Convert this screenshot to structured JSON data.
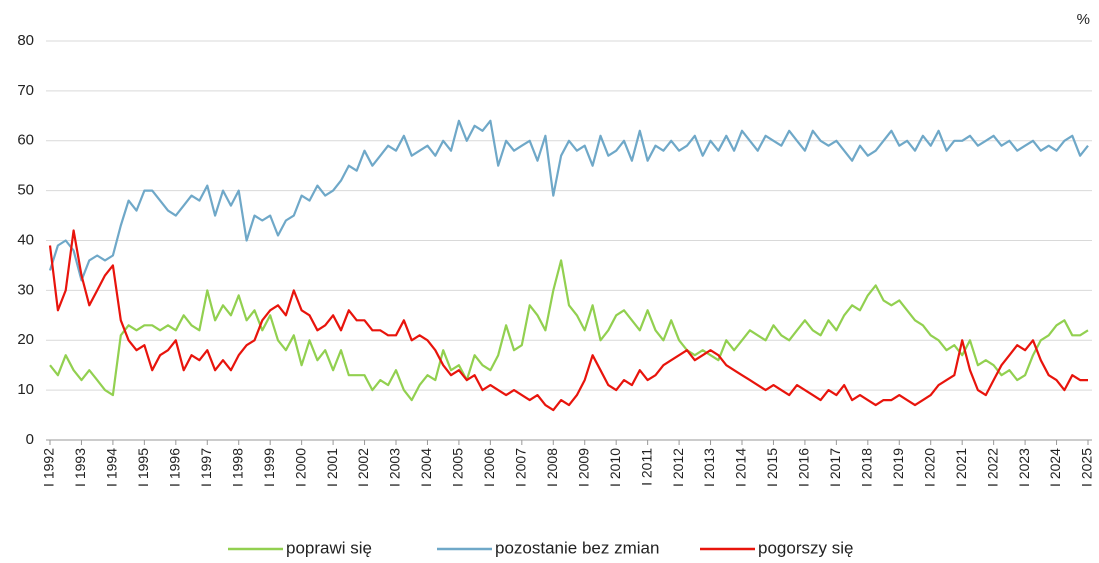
{
  "chart_data": {
    "type": "line",
    "unit": "%",
    "x": [
      1992,
      1992.25,
      1992.5,
      1992.75,
      1993,
      1993.25,
      1993.5,
      1993.75,
      1994,
      1994.25,
      1994.5,
      1994.75,
      1995,
      1995.25,
      1995.5,
      1995.75,
      1996,
      1996.25,
      1996.5,
      1996.75,
      1997,
      1997.25,
      1997.5,
      1997.75,
      1998,
      1998.25,
      1998.5,
      1998.75,
      1999,
      1999.25,
      1999.5,
      1999.75,
      2000,
      2000.25,
      2000.5,
      2000.75,
      2001,
      2001.25,
      2001.5,
      2001.75,
      2002,
      2002.25,
      2002.5,
      2002.75,
      2003,
      2003.25,
      2003.5,
      2003.75,
      2004,
      2004.25,
      2004.5,
      2004.75,
      2005,
      2005.25,
      2005.5,
      2005.75,
      2006,
      2006.25,
      2006.5,
      2006.75,
      2007,
      2007.25,
      2007.5,
      2007.75,
      2008,
      2008.25,
      2008.5,
      2008.75,
      2009,
      2009.25,
      2009.5,
      2009.75,
      2010,
      2010.25,
      2010.5,
      2010.75,
      2011,
      2011.25,
      2011.5,
      2011.75,
      2012,
      2012.25,
      2012.5,
      2012.75,
      2013,
      2013.25,
      2013.5,
      2013.75,
      2014,
      2014.25,
      2014.5,
      2014.75,
      2015,
      2015.25,
      2015.5,
      2015.75,
      2016,
      2016.25,
      2016.5,
      2016.75,
      2017,
      2017.25,
      2017.5,
      2017.75,
      2018,
      2018.25,
      2018.5,
      2018.75,
      2019,
      2019.25,
      2019.5,
      2019.75,
      2020,
      2020.25,
      2020.5,
      2020.75,
      2021,
      2021.25,
      2021.5,
      2021.75,
      2022,
      2022.25,
      2022.5,
      2022.75,
      2023,
      2023.25,
      2023.5,
      2023.75,
      2024,
      2024.25,
      2024.5,
      2024.75,
      2025
    ],
    "series": [
      {
        "name": "poprawi się",
        "color": "#92d050",
        "values": [
          15,
          13,
          17,
          14,
          12,
          14,
          12,
          10,
          9,
          21,
          23,
          22,
          23,
          23,
          22,
          23,
          22,
          25,
          23,
          22,
          30,
          24,
          27,
          25,
          29,
          24,
          26,
          22,
          25,
          20,
          18,
          21,
          15,
          20,
          16,
          18,
          14,
          18,
          13,
          13,
          13,
          10,
          12,
          11,
          14,
          10,
          8,
          11,
          13,
          12,
          18,
          14,
          15,
          12,
          17,
          15,
          14,
          17,
          23,
          18,
          19,
          27,
          25,
          22,
          30,
          36,
          27,
          25,
          22,
          27,
          20,
          22,
          25,
          26,
          24,
          22,
          26,
          22,
          20,
          24,
          20,
          18,
          17,
          18,
          17,
          16,
          20,
          18,
          20,
          22,
          21,
          20,
          23,
          21,
          20,
          22,
          24,
          22,
          21,
          24,
          22,
          25,
          27,
          26,
          29,
          31,
          28,
          27,
          28,
          26,
          24,
          23,
          21,
          20,
          18,
          19,
          17,
          20,
          15,
          16,
          15,
          13,
          14,
          12,
          13,
          17,
          20,
          21,
          23,
          24,
          21,
          21,
          22
        ]
      },
      {
        "name": "pozostanie bez zmian",
        "color": "#6fa8c8",
        "values": [
          34,
          39,
          40,
          38,
          32,
          36,
          37,
          36,
          37,
          43,
          48,
          46,
          50,
          50,
          48,
          46,
          45,
          47,
          49,
          48,
          51,
          45,
          50,
          47,
          50,
          40,
          45,
          44,
          45,
          41,
          44,
          45,
          49,
          48,
          51,
          49,
          50,
          52,
          55,
          54,
          58,
          55,
          57,
          59,
          58,
          61,
          57,
          58,
          59,
          57,
          60,
          58,
          64,
          60,
          63,
          62,
          64,
          55,
          60,
          58,
          59,
          60,
          56,
          61,
          49,
          57,
          60,
          58,
          59,
          55,
          61,
          57,
          58,
          60,
          56,
          62,
          56,
          59,
          58,
          60,
          58,
          59,
          61,
          57,
          60,
          58,
          61,
          58,
          62,
          60,
          58,
          61,
          60,
          59,
          62,
          60,
          58,
          62,
          60,
          59,
          60,
          58,
          56,
          59,
          57,
          58,
          60,
          62,
          59,
          60,
          58,
          61,
          59,
          62,
          58,
          60,
          60,
          61,
          59,
          60,
          61,
          59,
          60,
          58,
          59,
          60,
          58,
          59,
          58,
          60,
          61,
          57,
          59
        ]
      },
      {
        "name": "pogorszy się",
        "color": "#e8140c",
        "values": [
          39,
          26,
          30,
          42,
          33,
          27,
          30,
          33,
          35,
          24,
          20,
          18,
          19,
          14,
          17,
          18,
          20,
          14,
          17,
          16,
          18,
          14,
          16,
          14,
          17,
          19,
          20,
          24,
          26,
          27,
          25,
          30,
          26,
          25,
          22,
          23,
          25,
          22,
          26,
          24,
          24,
          22,
          22,
          21,
          21,
          24,
          20,
          21,
          20,
          18,
          15,
          13,
          14,
          12,
          13,
          10,
          11,
          10,
          9,
          10,
          9,
          8,
          9,
          7,
          6,
          8,
          7,
          9,
          12,
          17,
          14,
          11,
          10,
          12,
          11,
          14,
          12,
          13,
          15,
          16,
          17,
          18,
          16,
          17,
          18,
          17,
          15,
          14,
          13,
          12,
          11,
          10,
          11,
          10,
          9,
          11,
          10,
          9,
          8,
          10,
          9,
          11,
          8,
          9,
          8,
          7,
          8,
          8,
          9,
          8,
          7,
          8,
          9,
          11,
          12,
          13,
          20,
          14,
          10,
          9,
          12,
          15,
          17,
          19,
          18,
          20,
          16,
          13,
          12,
          10,
          13,
          12,
          12
        ]
      }
    ],
    "xlim": [
      1992,
      2025
    ],
    "xticks": [
      {
        "value": 1992,
        "label": "I 1992"
      },
      {
        "value": 1993,
        "label": "I 1993"
      },
      {
        "value": 1994,
        "label": "I 1994"
      },
      {
        "value": 1995,
        "label": "I 1995"
      },
      {
        "value": 1996,
        "label": "I 1996"
      },
      {
        "value": 1997,
        "label": "I 1997"
      },
      {
        "value": 1998,
        "label": "I 1998"
      },
      {
        "value": 1999,
        "label": "I 1999"
      },
      {
        "value": 2000,
        "label": "I 2000"
      },
      {
        "value": 2001,
        "label": "I 2001"
      },
      {
        "value": 2002,
        "label": "I 2002"
      },
      {
        "value": 2003,
        "label": "I 2003"
      },
      {
        "value": 2004,
        "label": "I 2004"
      },
      {
        "value": 2005,
        "label": "I 2005"
      },
      {
        "value": 2006,
        "label": "I 2006"
      },
      {
        "value": 2007,
        "label": "I 2007"
      },
      {
        "value": 2008,
        "label": "I 2008"
      },
      {
        "value": 2009,
        "label": "I 2009"
      },
      {
        "value": 2010,
        "label": "I 2010"
      },
      {
        "value": 2011,
        "label": "I 2011"
      },
      {
        "value": 2012,
        "label": "I 2012"
      },
      {
        "value": 2013,
        "label": "I 2013"
      },
      {
        "value": 2014,
        "label": "I 2014"
      },
      {
        "value": 2015,
        "label": "I 2015"
      },
      {
        "value": 2016,
        "label": "I 2016"
      },
      {
        "value": 2017,
        "label": "I 2017"
      },
      {
        "value": 2018,
        "label": "I 2018"
      },
      {
        "value": 2019,
        "label": "I 2019"
      },
      {
        "value": 2020,
        "label": "I 2020"
      },
      {
        "value": 2021,
        "label": "I 2021"
      },
      {
        "value": 2022,
        "label": "I 2022"
      },
      {
        "value": 2023,
        "label": "I 2023"
      },
      {
        "value": 2024,
        "label": "I 2024"
      },
      {
        "value": 2025,
        "label": "I 2025"
      }
    ],
    "ylim": [
      0,
      80
    ],
    "yticks": [
      0,
      10,
      20,
      30,
      40,
      50,
      60,
      70,
      80
    ],
    "grid": true,
    "legend": "bottom"
  }
}
